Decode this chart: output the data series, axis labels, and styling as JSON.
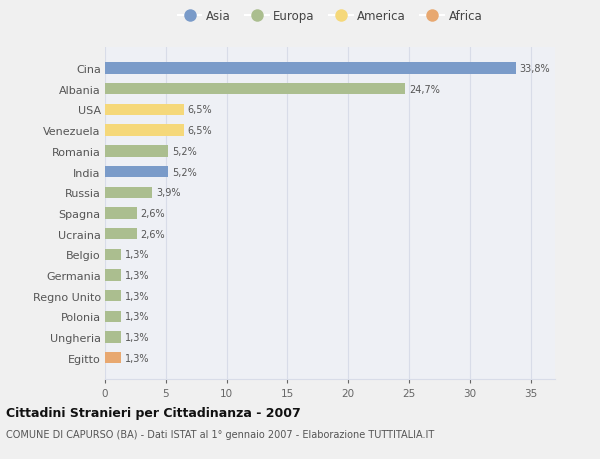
{
  "countries": [
    "Cina",
    "Albania",
    "USA",
    "Venezuela",
    "Romania",
    "India",
    "Russia",
    "Spagna",
    "Ucraina",
    "Belgio",
    "Germania",
    "Regno Unito",
    "Polonia",
    "Ungheria",
    "Egitto"
  ],
  "values": [
    33.8,
    24.7,
    6.5,
    6.5,
    5.2,
    5.2,
    3.9,
    2.6,
    2.6,
    1.3,
    1.3,
    1.3,
    1.3,
    1.3,
    1.3
  ],
  "labels": [
    "33,8%",
    "24,7%",
    "6,5%",
    "6,5%",
    "5,2%",
    "5,2%",
    "3,9%",
    "2,6%",
    "2,6%",
    "1,3%",
    "1,3%",
    "1,3%",
    "1,3%",
    "1,3%",
    "1,3%"
  ],
  "continents": [
    "Asia",
    "Europa",
    "America",
    "America",
    "Europa",
    "Asia",
    "Europa",
    "Europa",
    "Europa",
    "Europa",
    "Europa",
    "Europa",
    "Europa",
    "Europa",
    "Africa"
  ],
  "colors": {
    "Asia": "#7a9bc9",
    "Europa": "#abbe8f",
    "America": "#f5d87a",
    "Africa": "#e8a870"
  },
  "legend_order": [
    "Asia",
    "Europa",
    "America",
    "Africa"
  ],
  "title": "Cittadini Stranieri per Cittadinanza - 2007",
  "subtitle": "COMUNE DI CAPURSO (BA) - Dati ISTAT al 1° gennaio 2007 - Elaborazione TUTTITALIA.IT",
  "xlim": [
    0,
    37
  ],
  "xticks": [
    0,
    5,
    10,
    15,
    20,
    25,
    30,
    35
  ],
  "bg_color": "#f0f0f0",
  "plot_bg_color": "#eef0f5",
  "grid_color": "#d8dce8"
}
